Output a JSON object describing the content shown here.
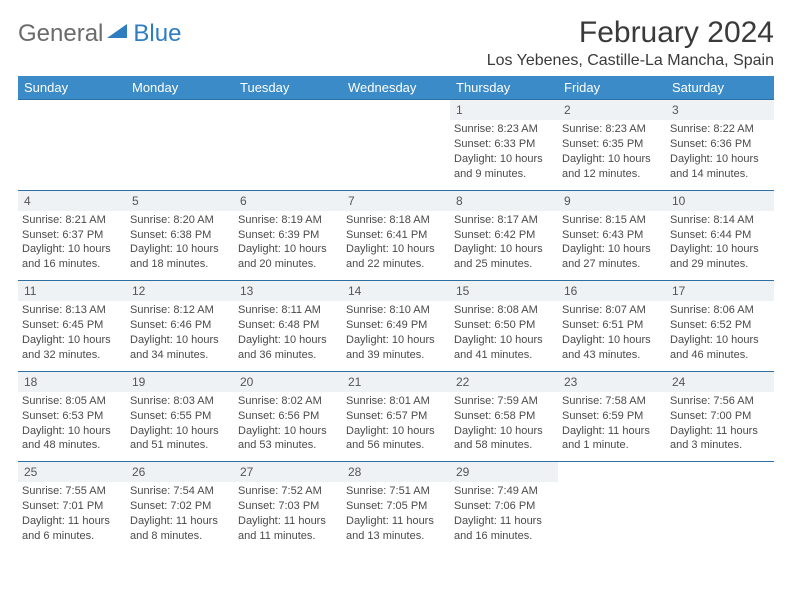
{
  "logo": {
    "part1": "General",
    "part2": "Blue"
  },
  "title": "February 2024",
  "location": "Los Yebenes, Castille-La Mancha, Spain",
  "colors": {
    "header_bg": "#3b8bc8",
    "header_text": "#ffffff",
    "daynum_bg": "#eef2f5",
    "border": "#2d6fa3",
    "logo_gray": "#6b6b6b",
    "logo_blue": "#2d7dc0"
  },
  "day_headers": [
    "Sunday",
    "Monday",
    "Tuesday",
    "Wednesday",
    "Thursday",
    "Friday",
    "Saturday"
  ],
  "weeks": [
    [
      null,
      null,
      null,
      null,
      {
        "n": "1",
        "sr": "Sunrise: 8:23 AM",
        "ss": "Sunset: 6:33 PM",
        "dl": "Daylight: 10 hours and 9 minutes."
      },
      {
        "n": "2",
        "sr": "Sunrise: 8:23 AM",
        "ss": "Sunset: 6:35 PM",
        "dl": "Daylight: 10 hours and 12 minutes."
      },
      {
        "n": "3",
        "sr": "Sunrise: 8:22 AM",
        "ss": "Sunset: 6:36 PM",
        "dl": "Daylight: 10 hours and 14 minutes."
      }
    ],
    [
      {
        "n": "4",
        "sr": "Sunrise: 8:21 AM",
        "ss": "Sunset: 6:37 PM",
        "dl": "Daylight: 10 hours and 16 minutes."
      },
      {
        "n": "5",
        "sr": "Sunrise: 8:20 AM",
        "ss": "Sunset: 6:38 PM",
        "dl": "Daylight: 10 hours and 18 minutes."
      },
      {
        "n": "6",
        "sr": "Sunrise: 8:19 AM",
        "ss": "Sunset: 6:39 PM",
        "dl": "Daylight: 10 hours and 20 minutes."
      },
      {
        "n": "7",
        "sr": "Sunrise: 8:18 AM",
        "ss": "Sunset: 6:41 PM",
        "dl": "Daylight: 10 hours and 22 minutes."
      },
      {
        "n": "8",
        "sr": "Sunrise: 8:17 AM",
        "ss": "Sunset: 6:42 PM",
        "dl": "Daylight: 10 hours and 25 minutes."
      },
      {
        "n": "9",
        "sr": "Sunrise: 8:15 AM",
        "ss": "Sunset: 6:43 PM",
        "dl": "Daylight: 10 hours and 27 minutes."
      },
      {
        "n": "10",
        "sr": "Sunrise: 8:14 AM",
        "ss": "Sunset: 6:44 PM",
        "dl": "Daylight: 10 hours and 29 minutes."
      }
    ],
    [
      {
        "n": "11",
        "sr": "Sunrise: 8:13 AM",
        "ss": "Sunset: 6:45 PM",
        "dl": "Daylight: 10 hours and 32 minutes."
      },
      {
        "n": "12",
        "sr": "Sunrise: 8:12 AM",
        "ss": "Sunset: 6:46 PM",
        "dl": "Daylight: 10 hours and 34 minutes."
      },
      {
        "n": "13",
        "sr": "Sunrise: 8:11 AM",
        "ss": "Sunset: 6:48 PM",
        "dl": "Daylight: 10 hours and 36 minutes."
      },
      {
        "n": "14",
        "sr": "Sunrise: 8:10 AM",
        "ss": "Sunset: 6:49 PM",
        "dl": "Daylight: 10 hours and 39 minutes."
      },
      {
        "n": "15",
        "sr": "Sunrise: 8:08 AM",
        "ss": "Sunset: 6:50 PM",
        "dl": "Daylight: 10 hours and 41 minutes."
      },
      {
        "n": "16",
        "sr": "Sunrise: 8:07 AM",
        "ss": "Sunset: 6:51 PM",
        "dl": "Daylight: 10 hours and 43 minutes."
      },
      {
        "n": "17",
        "sr": "Sunrise: 8:06 AM",
        "ss": "Sunset: 6:52 PM",
        "dl": "Daylight: 10 hours and 46 minutes."
      }
    ],
    [
      {
        "n": "18",
        "sr": "Sunrise: 8:05 AM",
        "ss": "Sunset: 6:53 PM",
        "dl": "Daylight: 10 hours and 48 minutes."
      },
      {
        "n": "19",
        "sr": "Sunrise: 8:03 AM",
        "ss": "Sunset: 6:55 PM",
        "dl": "Daylight: 10 hours and 51 minutes."
      },
      {
        "n": "20",
        "sr": "Sunrise: 8:02 AM",
        "ss": "Sunset: 6:56 PM",
        "dl": "Daylight: 10 hours and 53 minutes."
      },
      {
        "n": "21",
        "sr": "Sunrise: 8:01 AM",
        "ss": "Sunset: 6:57 PM",
        "dl": "Daylight: 10 hours and 56 minutes."
      },
      {
        "n": "22",
        "sr": "Sunrise: 7:59 AM",
        "ss": "Sunset: 6:58 PM",
        "dl": "Daylight: 10 hours and 58 minutes."
      },
      {
        "n": "23",
        "sr": "Sunrise: 7:58 AM",
        "ss": "Sunset: 6:59 PM",
        "dl": "Daylight: 11 hours and 1 minute."
      },
      {
        "n": "24",
        "sr": "Sunrise: 7:56 AM",
        "ss": "Sunset: 7:00 PM",
        "dl": "Daylight: 11 hours and 3 minutes."
      }
    ],
    [
      {
        "n": "25",
        "sr": "Sunrise: 7:55 AM",
        "ss": "Sunset: 7:01 PM",
        "dl": "Daylight: 11 hours and 6 minutes."
      },
      {
        "n": "26",
        "sr": "Sunrise: 7:54 AM",
        "ss": "Sunset: 7:02 PM",
        "dl": "Daylight: 11 hours and 8 minutes."
      },
      {
        "n": "27",
        "sr": "Sunrise: 7:52 AM",
        "ss": "Sunset: 7:03 PM",
        "dl": "Daylight: 11 hours and 11 minutes."
      },
      {
        "n": "28",
        "sr": "Sunrise: 7:51 AM",
        "ss": "Sunset: 7:05 PM",
        "dl": "Daylight: 11 hours and 13 minutes."
      },
      {
        "n": "29",
        "sr": "Sunrise: 7:49 AM",
        "ss": "Sunset: 7:06 PM",
        "dl": "Daylight: 11 hours and 16 minutes."
      },
      null,
      null
    ]
  ]
}
